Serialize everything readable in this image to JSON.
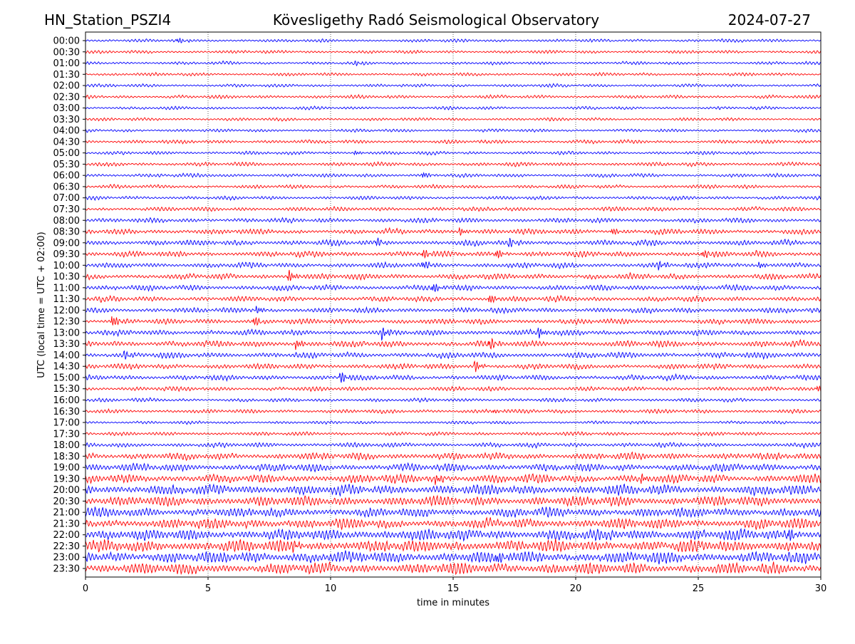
{
  "chart_data": {
    "type": "line",
    "title_left": "HN_Station_PSZI4",
    "title_center": "Kövesligethy Radó Seismological Observatory",
    "title_right": "2024-07-27",
    "xlabel": "time in minutes",
    "ylabel": "UTC (local time = UTC + 02:00)",
    "xlim": [
      0,
      30
    ],
    "xticks": [
      "0",
      "5",
      "10",
      "15",
      "20",
      "25",
      "30"
    ],
    "grid": "vertical dotted",
    "colors": [
      "#0000ff",
      "#ff0000"
    ],
    "rows": [
      "00:00",
      "00:30",
      "01:00",
      "01:30",
      "02:00",
      "02:30",
      "03:00",
      "03:30",
      "04:00",
      "04:30",
      "05:00",
      "05:30",
      "06:00",
      "06:30",
      "07:00",
      "07:30",
      "08:00",
      "08:30",
      "09:00",
      "09:30",
      "10:00",
      "10:30",
      "11:00",
      "11:30",
      "12:00",
      "12:30",
      "13:00",
      "13:30",
      "14:00",
      "14:30",
      "15:00",
      "15:30",
      "16:00",
      "16:30",
      "17:00",
      "17:30",
      "18:00",
      "18:30",
      "19:00",
      "19:30",
      "20:00",
      "20:30",
      "21:00",
      "21:30",
      "22:00",
      "22:30",
      "23:00",
      "23:30"
    ],
    "relative_noise_amplitude": [
      1,
      1,
      1,
      1,
      1,
      1.1,
      1,
      1,
      1,
      1.2,
      1.1,
      1.3,
      1.2,
      1.2,
      1.2,
      1.4,
      1.5,
      1.7,
      1.8,
      1.8,
      1.7,
      1.8,
      1.8,
      1.7,
      1.7,
      1.7,
      1.8,
      2,
      1.9,
      1.7,
      1.7,
      1.4,
      1.2,
      1.3,
      1,
      1.2,
      1.5,
      2.2,
      2.5,
      2.8,
      3.3,
      3.2,
      3,
      3.2,
      3.6,
      3.8,
      3.8,
      3.6
    ],
    "events": [
      {
        "row": 0,
        "minute": 3.8,
        "strength": 2
      },
      {
        "row": 2,
        "minute": 11.0,
        "strength": 1.5
      },
      {
        "row": 10,
        "minute": 11.0,
        "strength": 2
      },
      {
        "row": 12,
        "minute": 13.8,
        "strength": 2.5
      },
      {
        "row": 17,
        "minute": 15.3,
        "strength": 3
      },
      {
        "row": 17,
        "minute": 21.5,
        "strength": 3
      },
      {
        "row": 18,
        "minute": 11.9,
        "strength": 2.5
      },
      {
        "row": 18,
        "minute": 17.3,
        "strength": 3
      },
      {
        "row": 19,
        "minute": 13.8,
        "strength": 3.5
      },
      {
        "row": 19,
        "minute": 16.8,
        "strength": 3.5
      },
      {
        "row": 19,
        "minute": 25.2,
        "strength": 3
      },
      {
        "row": 20,
        "minute": 13.8,
        "strength": 3
      },
      {
        "row": 20,
        "minute": 23.4,
        "strength": 3
      },
      {
        "row": 20,
        "minute": 27.5,
        "strength": 3
      },
      {
        "row": 21,
        "minute": 8.3,
        "strength": 5
      },
      {
        "row": 22,
        "minute": 14.2,
        "strength": 4
      },
      {
        "row": 23,
        "minute": 16.5,
        "strength": 4
      },
      {
        "row": 24,
        "minute": 7.0,
        "strength": 3
      },
      {
        "row": 25,
        "minute": 1.1,
        "strength": 5
      },
      {
        "row": 25,
        "minute": 6.9,
        "strength": 3.5
      },
      {
        "row": 26,
        "minute": 12.1,
        "strength": 5
      },
      {
        "row": 26,
        "minute": 18.5,
        "strength": 4
      },
      {
        "row": 27,
        "minute": 8.6,
        "strength": 4
      },
      {
        "row": 27,
        "minute": 16.5,
        "strength": 4
      },
      {
        "row": 28,
        "minute": 1.6,
        "strength": 3
      },
      {
        "row": 29,
        "minute": 15.9,
        "strength": 4.5
      },
      {
        "row": 30,
        "minute": 10.4,
        "strength": 5
      },
      {
        "row": 31,
        "minute": 29.9,
        "strength": 3
      },
      {
        "row": 33,
        "minute": 16.7,
        "strength": 1.5
      },
      {
        "row": 39,
        "minute": 14.3,
        "strength": 4
      },
      {
        "row": 39,
        "minute": 22.7,
        "strength": 4
      },
      {
        "row": 44,
        "minute": 28.7,
        "strength": 4
      },
      {
        "row": 45,
        "minute": 8.5,
        "strength": 4
      },
      {
        "row": 46,
        "minute": 16.8,
        "strength": 5
      }
    ]
  }
}
